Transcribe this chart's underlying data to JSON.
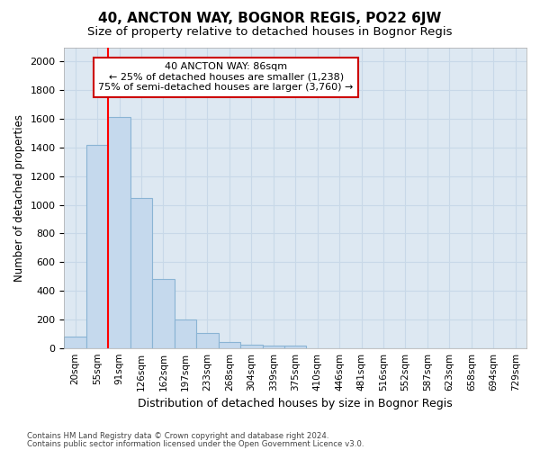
{
  "title": "40, ANCTON WAY, BOGNOR REGIS, PO22 6JW",
  "subtitle": "Size of property relative to detached houses in Bognor Regis",
  "xlabel": "Distribution of detached houses by size in Bognor Regis",
  "ylabel": "Number of detached properties",
  "footnote1": "Contains HM Land Registry data © Crown copyright and database right 2024.",
  "footnote2": "Contains public sector information licensed under the Open Government Licence v3.0.",
  "categories": [
    "20sqm",
    "55sqm",
    "91sqm",
    "126sqm",
    "162sqm",
    "197sqm",
    "233sqm",
    "268sqm",
    "304sqm",
    "339sqm",
    "375sqm",
    "410sqm",
    "446sqm",
    "481sqm",
    "516sqm",
    "552sqm",
    "587sqm",
    "623sqm",
    "658sqm",
    "694sqm",
    "729sqm"
  ],
  "values": [
    80,
    1420,
    1610,
    1050,
    480,
    200,
    105,
    40,
    20,
    15,
    15,
    0,
    0,
    0,
    0,
    0,
    0,
    0,
    0,
    0,
    0
  ],
  "bar_color": "#c5d9ed",
  "bar_edge_color": "#8ab4d4",
  "red_line_x": 2.0,
  "annotation_line1": "40 ANCTON WAY: 86sqm",
  "annotation_line2": "← 25% of detached houses are smaller (1,238)",
  "annotation_line3": "75% of semi-detached houses are larger (3,760) →",
  "annotation_box_facecolor": "#ffffff",
  "annotation_box_edgecolor": "#cc0000",
  "ylim": [
    0,
    2100
  ],
  "yticks": [
    0,
    200,
    400,
    600,
    800,
    1000,
    1200,
    1400,
    1600,
    1800,
    2000
  ],
  "grid_color": "#c8d8e8",
  "background_color": "#dde8f2",
  "title_fontsize": 11,
  "subtitle_fontsize": 9.5,
  "ylabel_fontsize": 8.5,
  "xlabel_fontsize": 9
}
